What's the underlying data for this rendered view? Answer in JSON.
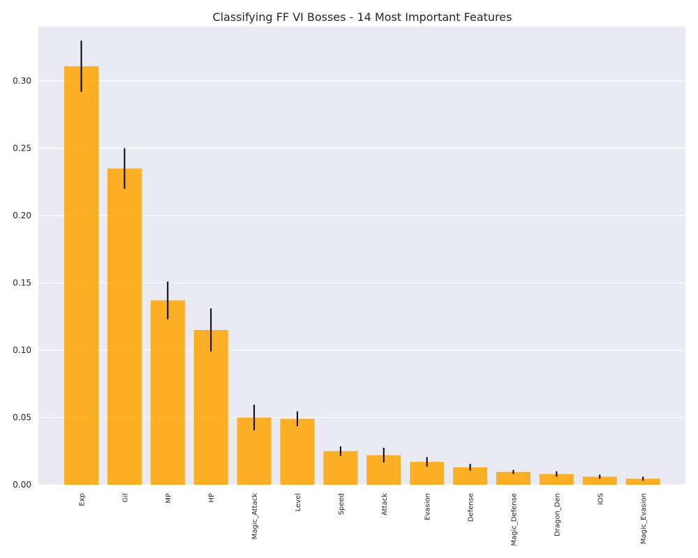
{
  "chart_data": {
    "type": "bar",
    "title": "Classifying FF VI Bosses - 14 Most Important Features",
    "xlabel": "",
    "ylabel": "",
    "categories": [
      "Exp",
      "Gil",
      "MP",
      "HP",
      "Magic_Attack",
      "Level",
      "Speed",
      "Attack",
      "Evasion",
      "Defense",
      "Magic_Defense",
      "Dragon_Den",
      "iOS",
      "Magic_Evasion"
    ],
    "values": [
      0.311,
      0.235,
      0.137,
      0.115,
      0.05,
      0.049,
      0.025,
      0.022,
      0.017,
      0.013,
      0.0095,
      0.008,
      0.006,
      0.0045
    ],
    "errors": [
      0.019,
      0.015,
      0.014,
      0.016,
      0.0095,
      0.0055,
      0.0035,
      0.0055,
      0.0035,
      0.0025,
      0.0015,
      0.002,
      0.0015,
      0.0015
    ],
    "ylim": [
      0,
      0.3405
    ],
    "yticks": [
      "0.00",
      "0.05",
      "0.10",
      "0.15",
      "0.20",
      "0.25",
      "0.30"
    ],
    "grid": true,
    "colors": {
      "bar": "#ffa500",
      "error": "#000000",
      "plot_bg": "#eaeaf2",
      "grid": "#ffffff"
    }
  }
}
